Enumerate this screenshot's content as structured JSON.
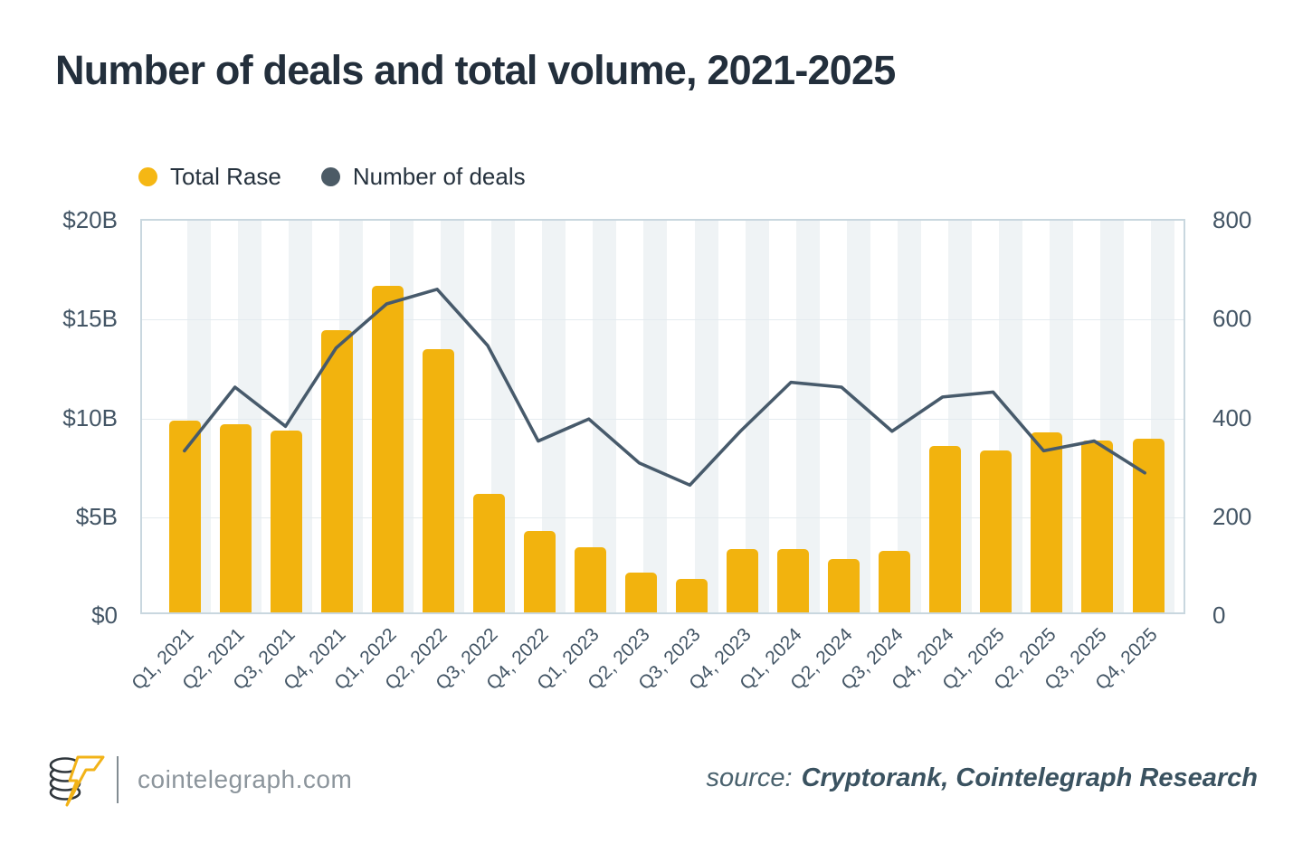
{
  "title": "Number of deals and total volume, 2021-2025",
  "legend": [
    {
      "label": "Total Rase",
      "color": "#F5B714",
      "marker": "circle"
    },
    {
      "label": "Number of deals",
      "color": "#4C5B66",
      "marker": "circle"
    }
  ],
  "footer": {
    "site": "cointelegraph.com",
    "source_prefix": "source:",
    "source": "Cryptorank, Cointelegraph Research",
    "logo_icon": "cointelegraph-coin-stack-lightning-logo"
  },
  "colors": {
    "bar": "#F2B30E",
    "line": "#475A6B",
    "title_text": "#232F3C",
    "axis_text": "#435565",
    "gridline": "#E4EBEF",
    "plot_border": "#C9D7DF",
    "stripe": "#EFF3F5"
  },
  "chart_data": {
    "type": "combo",
    "title": "Number of deals and total volume, 2021-2025",
    "categories": [
      "Q1, 2021",
      "Q2, 2021",
      "Q3, 2021",
      "Q4, 2021",
      "Q1, 2022",
      "Q2, 2022",
      "Q3, 2022",
      "Q4, 2022",
      "Q1, 2023",
      "Q2, 2023",
      "Q3, 2023",
      "Q4, 2023",
      "Q1, 2024",
      "Q2, 2024",
      "Q3, 2024",
      "Q4, 2024",
      "Q1, 2025",
      "Q2, 2025",
      "Q3, 2025",
      "Q4, 2025"
    ],
    "series": [
      {
        "name": "Total Rase",
        "type": "bar",
        "axis": "left",
        "unit": "USD billions",
        "color": "#F2B30E",
        "values": [
          9.7,
          9.5,
          9.2,
          14.3,
          16.5,
          13.3,
          6.0,
          4.1,
          3.3,
          2.0,
          1.7,
          3.2,
          3.2,
          2.7,
          3.1,
          8.4,
          8.2,
          9.1,
          8.7,
          8.8
        ]
      },
      {
        "name": "Number of deals",
        "type": "line",
        "axis": "right",
        "color": "#475A6B",
        "values": [
          330,
          460,
          380,
          540,
          630,
          660,
          545,
          350,
          395,
          305,
          260,
          370,
          470,
          460,
          370,
          440,
          450,
          330,
          350,
          285
        ]
      }
    ],
    "left_axis": {
      "ticks": [
        "$0",
        "$5B",
        "$10B",
        "$15B",
        "$20B"
      ],
      "values": [
        0,
        5,
        10,
        15,
        20
      ],
      "min": 0,
      "max": 20
    },
    "right_axis": {
      "ticks": [
        "0",
        "200",
        "400",
        "600",
        "800"
      ],
      "values": [
        0,
        200,
        400,
        600,
        800
      ],
      "min": 0,
      "max": 800
    },
    "grid": "horizontal",
    "legend_position": "top-left",
    "background_stripes": "alternating vertical bands per quarter"
  }
}
